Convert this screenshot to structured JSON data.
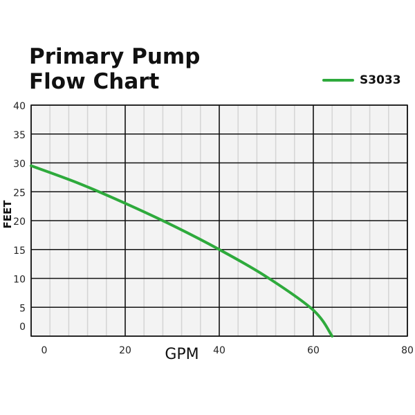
{
  "title_line1": "Primary Pump",
  "title_line2": "Flow Chart",
  "chart_data": {
    "type": "line",
    "title": "Primary Pump Flow Chart",
    "xlabel": "GPM",
    "ylabel": "FEET",
    "xlim": [
      0,
      80
    ],
    "ylim": [
      0,
      40
    ],
    "xticks": [
      0,
      20,
      40,
      60,
      80
    ],
    "yticks": [
      0,
      5,
      10,
      15,
      20,
      25,
      30,
      35,
      40
    ],
    "x_minor_step": 4,
    "grid": true,
    "legend_position": "top-right",
    "series": [
      {
        "name": "S3033",
        "color": "#2eaa3c",
        "x": [
          0,
          10,
          20,
          30,
          40,
          50,
          60,
          64
        ],
        "y": [
          29.5,
          26.5,
          23,
          19.2,
          15,
          10.3,
          4.5,
          0
        ]
      }
    ]
  }
}
